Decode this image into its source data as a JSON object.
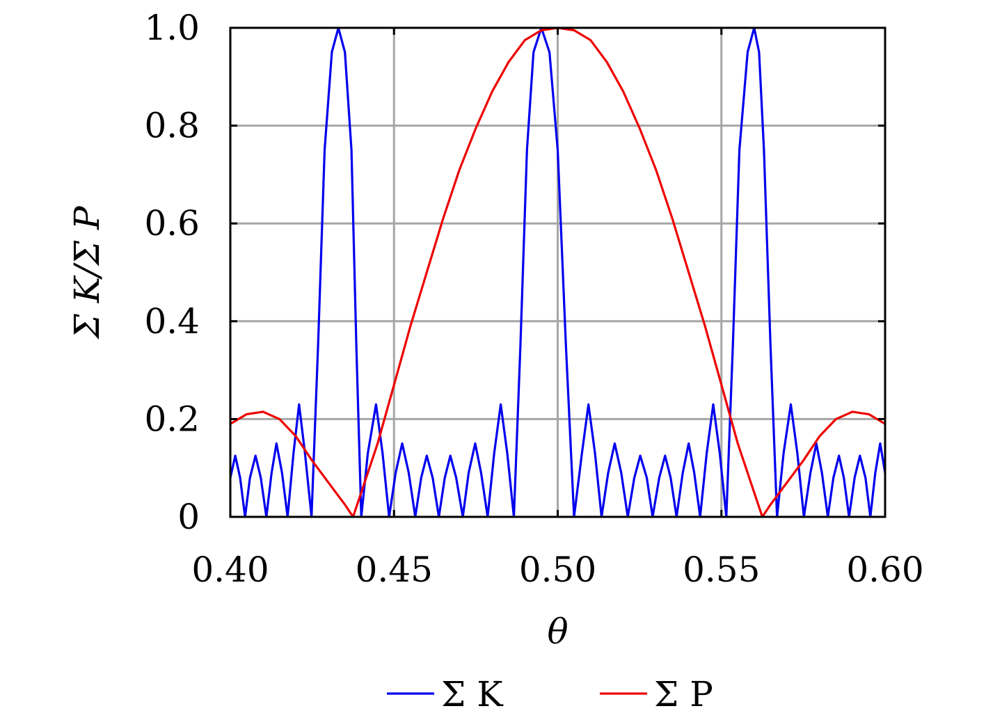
{
  "chart_data": {
    "type": "line",
    "title": "",
    "xlabel": "θ",
    "ylabel": "Σ K/Σ P",
    "xlim": [
      0.4,
      0.6
    ],
    "ylim": [
      0,
      1.0
    ],
    "x_ticks": [
      "0.40",
      "0.45",
      "0.50",
      "0.55",
      "0.60"
    ],
    "x_tick_values": [
      0.4,
      0.45,
      0.5,
      0.55,
      0.6
    ],
    "y_ticks": [
      "0",
      "0.2",
      "0.4",
      "0.6",
      "0.8",
      "1.0"
    ],
    "y_tick_values": [
      0,
      0.2,
      0.4,
      0.6,
      0.8,
      1.0
    ],
    "grid": true,
    "legend_placement": "bottom-center",
    "series": [
      {
        "name": "Σ K",
        "color": "#0000ee",
        "x": [
          0.4,
          0.4015,
          0.403,
          0.4045,
          0.406,
          0.4077,
          0.4093,
          0.411,
          0.4126,
          0.4141,
          0.4158,
          0.4175,
          0.4193,
          0.421,
          0.4228,
          0.4248,
          0.4268,
          0.4288,
          0.431,
          0.433,
          0.435,
          0.437,
          0.4385,
          0.44,
          0.442,
          0.4445,
          0.4465,
          0.4485,
          0.4505,
          0.4525,
          0.4545,
          0.4565,
          0.4583,
          0.46,
          0.4618,
          0.4637,
          0.4655,
          0.4672,
          0.469,
          0.471,
          0.4728,
          0.4748,
          0.4766,
          0.4786,
          0.4806,
          0.4826,
          0.4846,
          0.4866,
          0.4886,
          0.4906,
          0.4926,
          0.495,
          0.4975,
          0.5,
          0.5025,
          0.505,
          0.5074,
          0.5094,
          0.5114,
          0.5134,
          0.5154,
          0.5174,
          0.5194,
          0.5214,
          0.5234,
          0.5252,
          0.5272,
          0.529,
          0.531,
          0.5328,
          0.5345,
          0.5363,
          0.5382,
          0.54,
          0.5417,
          0.5435,
          0.5455,
          0.5475,
          0.5495,
          0.5515,
          0.5535,
          0.5555,
          0.558,
          0.56,
          0.5615,
          0.563,
          0.565,
          0.567,
          0.569,
          0.5712,
          0.5732,
          0.5752,
          0.5772,
          0.579,
          0.5807,
          0.5825,
          0.5842,
          0.5859,
          0.5874,
          0.589,
          0.5907,
          0.5923,
          0.594,
          0.5955,
          0.597,
          0.5985,
          0.6
        ],
        "y": [
          0.08,
          0.125,
          0.08,
          0.0,
          0.08,
          0.125,
          0.08,
          0.0,
          0.09,
          0.15,
          0.09,
          0.0,
          0.13,
          0.23,
          0.13,
          0.0,
          0.35,
          0.75,
          0.95,
          1.0,
          0.95,
          0.75,
          0.35,
          0.0,
          0.13,
          0.23,
          0.13,
          0.0,
          0.09,
          0.15,
          0.09,
          0.0,
          0.08,
          0.125,
          0.08,
          0.0,
          0.08,
          0.125,
          0.08,
          0.0,
          0.09,
          0.15,
          0.09,
          0.0,
          0.13,
          0.23,
          0.13,
          0.0,
          0.35,
          0.75,
          0.95,
          1.0,
          0.95,
          0.75,
          0.35,
          0.0,
          0.13,
          0.23,
          0.13,
          0.0,
          0.09,
          0.15,
          0.09,
          0.0,
          0.08,
          0.125,
          0.08,
          0.0,
          0.08,
          0.125,
          0.08,
          0.0,
          0.09,
          0.15,
          0.09,
          0.0,
          0.13,
          0.23,
          0.13,
          0.0,
          0.35,
          0.75,
          0.95,
          1.0,
          0.95,
          0.75,
          0.35,
          0.0,
          0.13,
          0.23,
          0.13,
          0.0,
          0.09,
          0.15,
          0.09,
          0.0,
          0.08,
          0.125,
          0.08,
          0.0,
          0.08,
          0.125,
          0.08,
          0.0,
          0.09,
          0.15,
          0.09
        ]
      },
      {
        "name": "Σ P",
        "color": "#ee0000",
        "x": [
          0.4,
          0.405,
          0.41,
          0.415,
          0.42,
          0.425,
          0.43,
          0.435,
          0.4375,
          0.44,
          0.445,
          0.45,
          0.455,
          0.46,
          0.465,
          0.47,
          0.475,
          0.48,
          0.485,
          0.49,
          0.495,
          0.5,
          0.505,
          0.51,
          0.515,
          0.52,
          0.525,
          0.53,
          0.535,
          0.54,
          0.545,
          0.55,
          0.555,
          0.56,
          0.5625,
          0.565,
          0.57,
          0.575,
          0.58,
          0.585,
          0.59,
          0.595,
          0.6
        ],
        "y": [
          0.19,
          0.21,
          0.215,
          0.2,
          0.165,
          0.115,
          0.07,
          0.025,
          0.0,
          0.05,
          0.15,
          0.27,
          0.39,
          0.5,
          0.61,
          0.71,
          0.795,
          0.87,
          0.93,
          0.975,
          0.995,
          1.0,
          0.995,
          0.975,
          0.93,
          0.87,
          0.795,
          0.71,
          0.61,
          0.5,
          0.39,
          0.27,
          0.15,
          0.05,
          0.0,
          0.025,
          0.07,
          0.115,
          0.165,
          0.2,
          0.215,
          0.21,
          0.19
        ]
      }
    ]
  }
}
